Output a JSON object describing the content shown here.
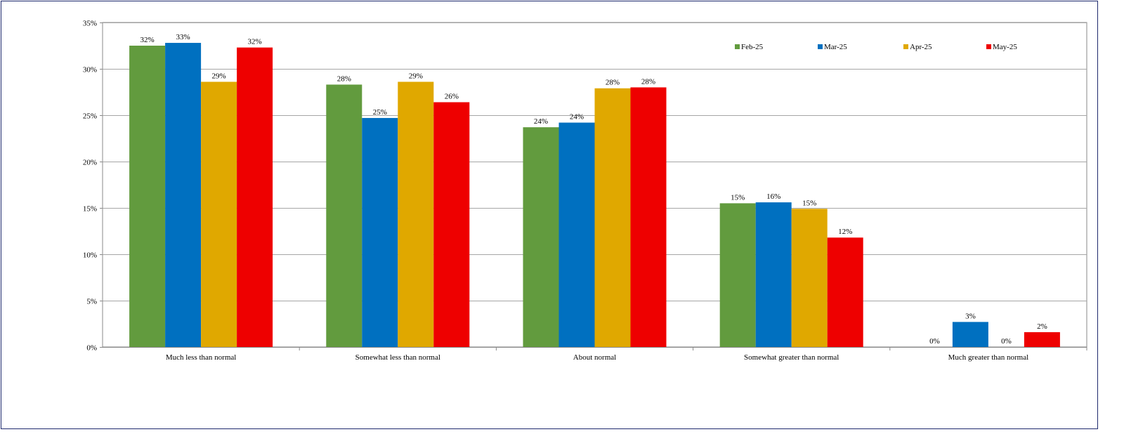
{
  "chart_data": {
    "type": "bar",
    "title": "",
    "xlabel": "",
    "ylabel": "",
    "categories": [
      "Much less than normal",
      "Somewhat less than normal",
      "About normal",
      "Somewhat greater than normal",
      "Much greater than normal"
    ],
    "ylim": [
      0,
      35
    ],
    "yticks": [
      "0%",
      "5%",
      "10%",
      "15%",
      "20%",
      "25%",
      "30%",
      "35%"
    ],
    "grid": true,
    "legend_position": "top-right",
    "series": [
      {
        "name": "Feb-25",
        "color": "#629b3e",
        "values": [
          32.5,
          28.3,
          23.7,
          15.5,
          0
        ],
        "labels": [
          "32%",
          "28%",
          "24%",
          "15%",
          "0%"
        ]
      },
      {
        "name": "Mar-25",
        "color": "#0070c0",
        "values": [
          32.8,
          24.7,
          24.2,
          15.6,
          2.7
        ],
        "labels": [
          "33%",
          "25%",
          "24%",
          "16%",
          "3%"
        ]
      },
      {
        "name": "Apr-25",
        "color": "#e0a800",
        "values": [
          28.6,
          28.6,
          27.9,
          14.9,
          0
        ],
        "labels": [
          "29%",
          "29%",
          "28%",
          "15%",
          "0%"
        ]
      },
      {
        "name": "May-25",
        "color": "#ee0000",
        "values": [
          32.3,
          26.4,
          28.0,
          11.8,
          1.6
        ],
        "labels": [
          "32%",
          "26%",
          "28%",
          "12%",
          "2%"
        ]
      }
    ]
  }
}
